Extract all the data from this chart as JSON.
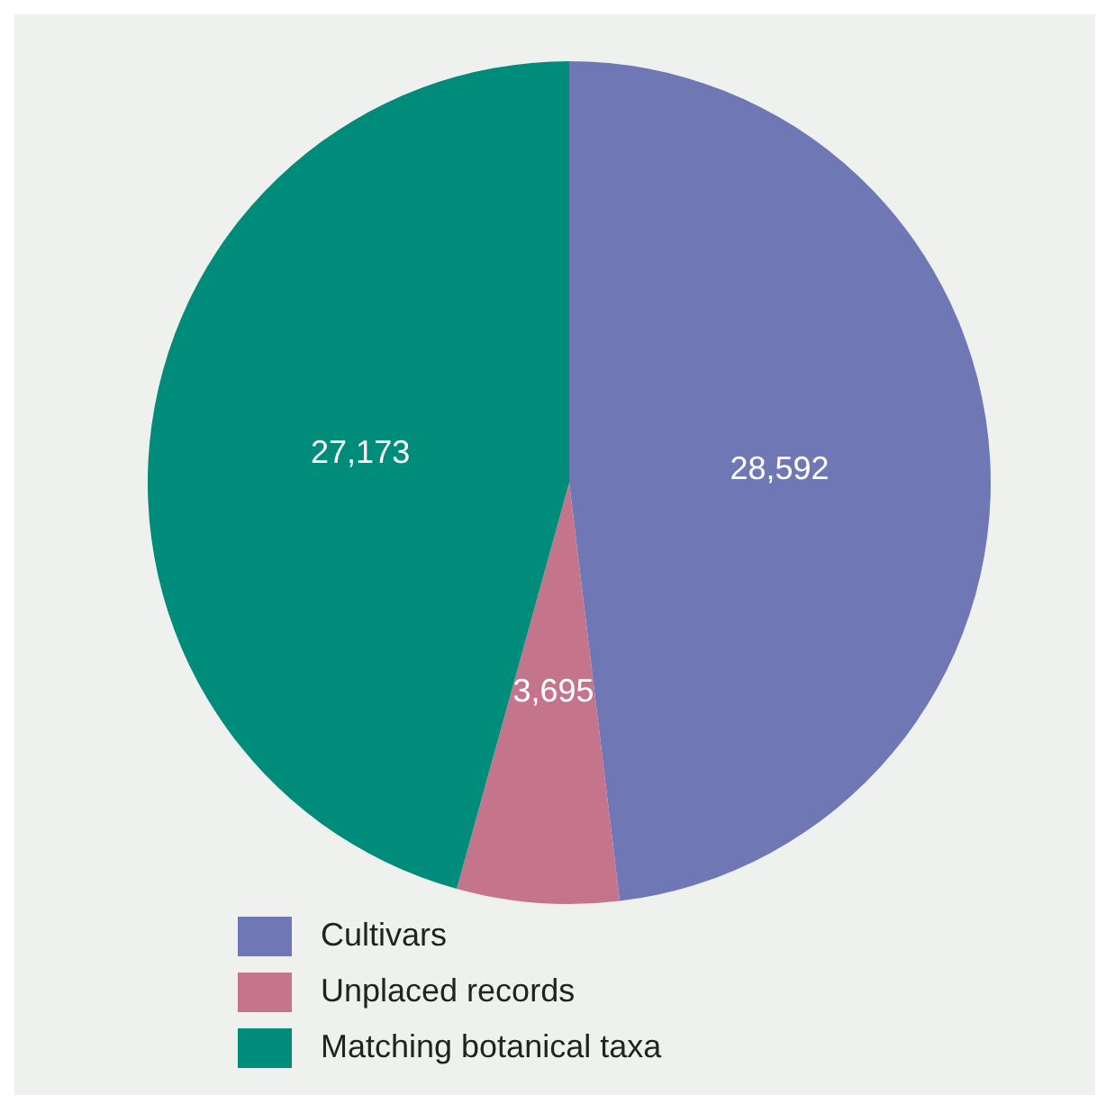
{
  "chart_data": {
    "type": "pie",
    "categories": [
      "Cultivars",
      "Unplaced records",
      "Matching botanical taxa"
    ],
    "values": [
      28592,
      3695,
      27173
    ],
    "colors": [
      "#6f78b5",
      "#c4758b",
      "#008c7a"
    ],
    "value_labels": [
      "28,592",
      "3,695",
      "27,173"
    ],
    "legend": "bottom"
  }
}
